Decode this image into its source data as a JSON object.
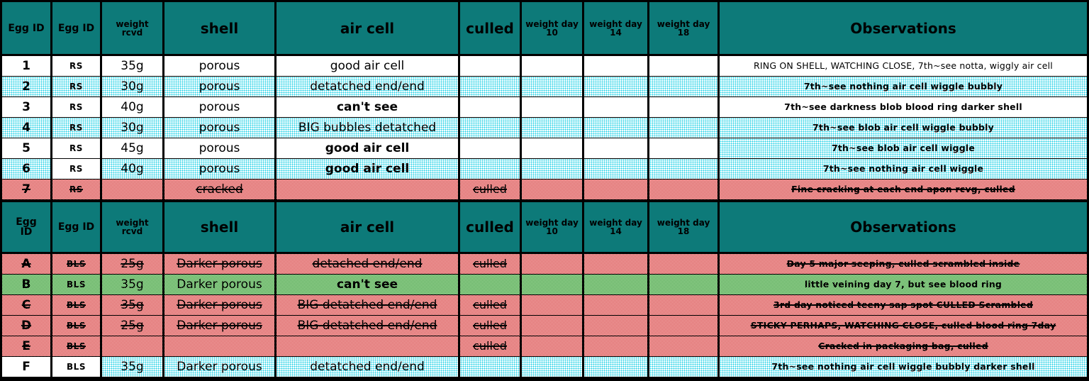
{
  "colors": {
    "header_teal": "#0d7a79",
    "grid_black": "#000000",
    "pattern_cyan": "#1ed0e6",
    "pattern_red": "#cf2b2b",
    "pattern_green": "#1f8f2a",
    "header_text": "#ffffff",
    "cell_text": "#000000"
  },
  "sections": [
    {
      "header": {
        "id": "Egg ID",
        "egg": "Egg ID",
        "wt": "weight\nrcvd",
        "shell": "shell",
        "air": "air cell",
        "culled": "culled",
        "d10": "weight day\n10",
        "d14": "weight day\n14",
        "d18": "weight day\n18",
        "obs": "Observations"
      },
      "rows": [
        {
          "id": "1",
          "egg": "RS",
          "wt": "35g",
          "shell": "porous",
          "air": "good air cell",
          "culled": "",
          "d10": "",
          "d14": "",
          "d18": "",
          "obs": "RING ON SHELL, WATCHING CLOSE, 7th~see notta, wiggly air cell",
          "bg": "white",
          "struck": false,
          "bold": []
        },
        {
          "id": "2",
          "egg": "RS",
          "wt": "30g",
          "shell": "porous",
          "air": "detatched end/end",
          "culled": "",
          "d10": "",
          "d14": "",
          "d18": "",
          "obs": "7th~see nothing air cell wiggle bubbly",
          "bg": "cyan",
          "struck": false,
          "bold": [
            "obs"
          ]
        },
        {
          "id": "3",
          "egg": "RS",
          "wt": "40g",
          "shell": "porous",
          "air": "can't see",
          "culled": "",
          "d10": "",
          "d14": "",
          "d18": "",
          "obs": "7th~see darkness blob blood ring darker shell",
          "bg": "white",
          "struck": false,
          "bold": [
            "air",
            "obs"
          ]
        },
        {
          "id": "4",
          "egg": "RS",
          "wt": "30g",
          "shell": "porous",
          "air": "BIG bubbles detatched",
          "culled": "",
          "d10": "",
          "d14": "",
          "d18": "",
          "obs": "7th~see blob air cell wiggle bubbly",
          "bg": "cyan",
          "struck": false,
          "bold": [
            "obs"
          ]
        },
        {
          "id": "5",
          "egg": "RS",
          "wt": "45g",
          "shell": "porous",
          "air": "good air cell",
          "culled": "",
          "d10": "",
          "d14": "",
          "d18": "",
          "obs": "7th~see blob air cell wiggle",
          "bg": "white",
          "struck": false,
          "bold": [
            "air",
            "obs"
          ],
          "cell_bg": {
            "obs": "cyan"
          }
        },
        {
          "id": "6",
          "egg": "RS",
          "wt": "40g",
          "shell": "porous",
          "air": "good air cell",
          "culled": "",
          "d10": "",
          "d14": "",
          "d18": "",
          "obs": "7th~see nothing air cell wiggle",
          "bg": "cyan",
          "struck": false,
          "bold": [
            "air",
            "obs"
          ],
          "cell_bg": {
            "egg": "white"
          }
        },
        {
          "id": "7",
          "egg": "RS",
          "wt": "",
          "shell": "cracked",
          "air": "",
          "culled": "culled",
          "d10": "",
          "d14": "",
          "d18": "",
          "obs": "Fine cracking at each end apon rcvg, culled",
          "bg": "red",
          "struck": true,
          "bold": [
            "obs"
          ]
        }
      ]
    },
    {
      "header": {
        "id": "Egg\nID",
        "egg": "Egg ID",
        "wt": "weight\nrcvd",
        "shell": "shell",
        "air": "air cell",
        "culled": "culled",
        "d10": "weight day\n10",
        "d14": "weight day\n14",
        "d18": "weight day\n18",
        "obs": "Observations"
      },
      "rows": [
        {
          "id": "A",
          "egg": "BLS",
          "wt": "25g",
          "shell": "Darker porous",
          "air": "detached end/end",
          "culled": "culled",
          "d10": "",
          "d14": "",
          "d18": "",
          "obs": "Day 5 major seeping, culled scrambled inside",
          "bg": "red",
          "struck": true,
          "bold": [
            "obs"
          ]
        },
        {
          "id": "B",
          "egg": "BLS",
          "wt": "35g",
          "shell": "Darker porous",
          "air": "can't see",
          "culled": "",
          "d10": "",
          "d14": "",
          "d18": "",
          "obs": "little veining day 7, but see blood ring",
          "bg": "green",
          "struck": false,
          "bold": [
            "air",
            "obs"
          ]
        },
        {
          "id": "C",
          "egg": "BLS",
          "wt": "35g",
          "shell": "Darker porous",
          "air": "BIG detatched end/end",
          "culled": "culled",
          "d10": "",
          "d14": "",
          "d18": "",
          "obs": "3rd day noticed teeny sap spot CULLED Scrambled",
          "bg": "red",
          "struck": true,
          "bold": [
            "obs"
          ]
        },
        {
          "id": "D",
          "egg": "BLS",
          "wt": "25g",
          "shell": "Darker porous",
          "air": "BIG detatched end/end",
          "culled": "culled",
          "d10": "",
          "d14": "",
          "d18": "",
          "obs": "STICKY PERHAPS, WATCHING CLOSE, culled blood ring 7day",
          "bg": "red",
          "struck": true,
          "bold": [
            "obs"
          ]
        },
        {
          "id": "E",
          "egg": "BLS",
          "wt": "",
          "shell": "",
          "air": "",
          "culled": "culled",
          "d10": "",
          "d14": "",
          "d18": "",
          "obs": "Cracked in packaging bag, culled",
          "bg": "red",
          "struck": true,
          "bold": [
            "obs"
          ]
        },
        {
          "id": "F",
          "egg": "BLS",
          "wt": "35g",
          "shell": "Darker porous",
          "air": "detatched end/end",
          "culled": "",
          "d10": "",
          "d14": "",
          "d18": "",
          "obs": "7th~see nothing air cell wiggle bubbly darker shell",
          "bg": "cyan",
          "struck": false,
          "bold": [
            "obs"
          ],
          "cell_bg": {
            "id": "white",
            "egg": "white"
          }
        }
      ]
    }
  ]
}
